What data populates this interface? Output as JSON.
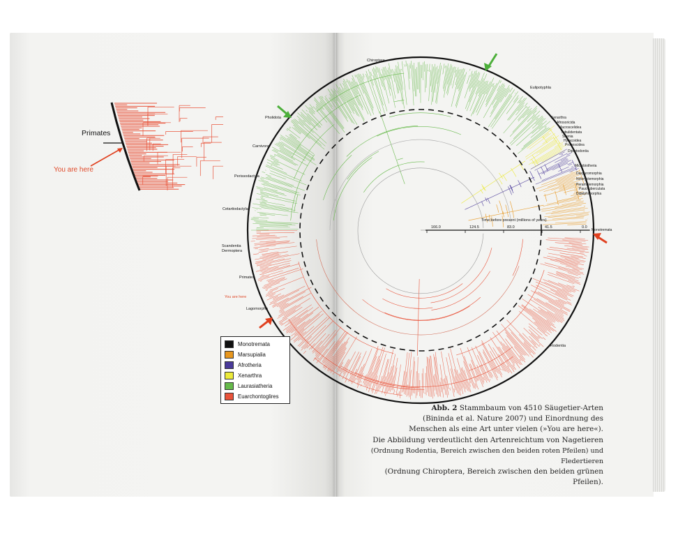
{
  "inset": {
    "clade_label": "Primates",
    "pointer_label": "You are here"
  },
  "tree": {
    "clade_labels": {
      "chiroptera": "Chiroptera",
      "eulipotyphla": "Eulipotyphla",
      "pholidota": "Pholidota",
      "carnivora": "Carnivora",
      "perissodactyla": "Perissodactyla",
      "cetartiodactyla": "Cetartiodactyla",
      "scandentia": "Scandentia",
      "dermoptera": "Dermoptera",
      "primates": "Primates",
      "you_are_here": "You are here",
      "lagomorpha": "Lagomorpha",
      "rodentia": "Rodentia",
      "monotremata": "Monotremata",
      "xenarthra": "Xenarthra",
      "afrosoricida": "Afrosoricida",
      "macroscelidea": "Macroscelidea",
      "tubulidentata": "Tubulidentata",
      "sirenia": "Sirenia",
      "hyracoidea": "Hyracoidea",
      "proboscidea": "Proboscidea",
      "diprotodontia": "Diprotodontia",
      "microbiotheria": "Microbiotheria",
      "dasyuromorphia": "Dasyuromorphia",
      "notoryctemorphia": "Notoryctemorphia",
      "peramelemorphia": "Peramelemorphia",
      "paucituberculata": "Paucituberculata",
      "didelphimorphia": "Didelphimorphia"
    },
    "axis": {
      "title": "Time before present (millions of years)",
      "ticks": [
        "166.0",
        "124.5",
        "83.0",
        "41.5",
        "0.0"
      ]
    }
  },
  "legend": {
    "items": [
      {
        "label": "Monotremata",
        "color": "#111111"
      },
      {
        "label": "Marsupialia",
        "color": "#e8971f"
      },
      {
        "label": "Afrotheria",
        "color": "#4a3a9a"
      },
      {
        "label": "Xenarthra",
        "color": "#ecea3a"
      },
      {
        "label": "Laurasiatheria",
        "color": "#66b94a"
      },
      {
        "label": "Euarchontoglires",
        "color": "#e9533a"
      }
    ]
  },
  "caption": {
    "lead": "Abb. 2",
    "lines": [
      "Stammbaum von 4510 Säugetier-Arten",
      "(Bininda  et al. Nature 2007) und Einordnung des",
      "Menschen als eine Art unter vielen (»You are here«).",
      "Die Abbildung verdeutlicht den Artenreichtum von Nagetieren",
      "(Ordnung Rodentia, Bereich zwischen den beiden roten Pfeilen) und Fledertieren",
      "(Ordnung Chiroptera, Bereich zwischen den beiden grünen Pfeilen)."
    ]
  },
  "colors": {
    "red": "#e9533a",
    "green": "#66b94a",
    "orange": "#e8971f",
    "purple": "#4a3a9a",
    "yellow": "#ecea3a",
    "arrow_green": "#4caf3a",
    "arrow_red": "#e0401f"
  }
}
